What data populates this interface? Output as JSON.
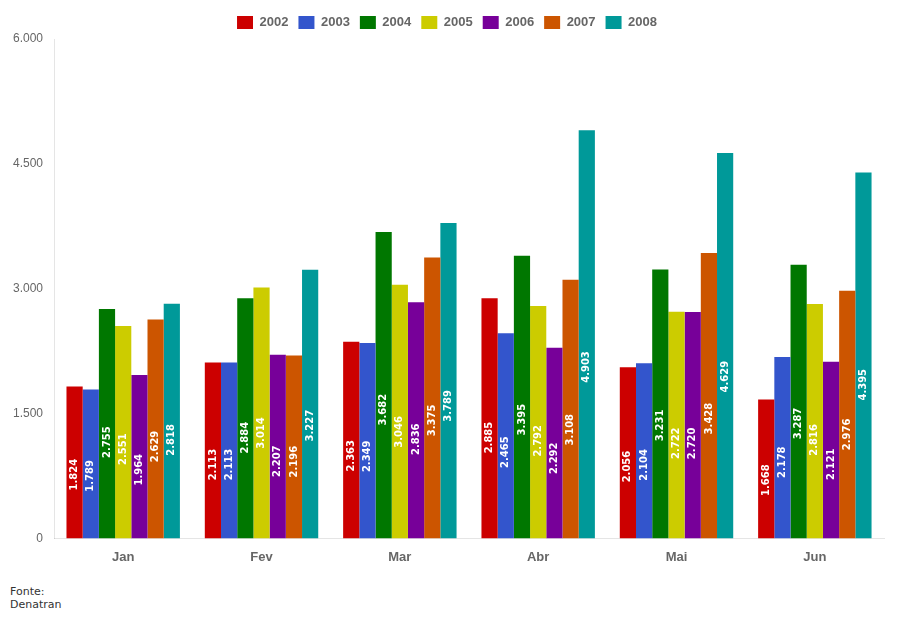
{
  "chart_data": {
    "type": "bar",
    "categories": [
      "Jan",
      "Fev",
      "Mar",
      "Abr",
      "Mai",
      "Jun"
    ],
    "series": [
      {
        "name": "2002",
        "color": "#CC0000",
        "values": [
          1824,
          2113,
          2363,
          2885,
          2056,
          1668
        ],
        "value_labels": [
          "1.824",
          "2.113",
          "2.363",
          "2.885",
          "2.056",
          "1.668"
        ]
      },
      {
        "name": "2003",
        "color": "#3355CC",
        "values": [
          1789,
          2113,
          2349,
          2465,
          2104,
          2178
        ],
        "value_labels": [
          "1.789",
          "2.113",
          "2.349",
          "2.465",
          "2.104",
          "2.178"
        ]
      },
      {
        "name": "2004",
        "color": "#007700",
        "values": [
          2755,
          2884,
          3682,
          3395,
          3231,
          3287
        ],
        "value_labels": [
          "2.755",
          "2.884",
          "3.682",
          "3.395",
          "3.231",
          "3.287"
        ]
      },
      {
        "name": "2005",
        "color": "#CCCC00",
        "values": [
          2551,
          3014,
          3046,
          2792,
          2722,
          2816
        ],
        "value_labels": [
          "2.551",
          "3.014",
          "3.046",
          "2.792",
          "2.722",
          "2.816"
        ]
      },
      {
        "name": "2006",
        "color": "#770099",
        "values": [
          1964,
          2207,
          2836,
          2292,
          2720,
          2121
        ],
        "value_labels": [
          "1.964",
          "2.207",
          "2.836",
          "2.292",
          "2.720",
          "2.121"
        ]
      },
      {
        "name": "2007",
        "color": "#CC5500",
        "values": [
          2629,
          2196,
          3375,
          3108,
          3428,
          2976
        ],
        "value_labels": [
          "2.629",
          "2.196",
          "3.375",
          "3.108",
          "3.428",
          "2.976"
        ]
      },
      {
        "name": "2008",
        "color": "#009999",
        "values": [
          2818,
          3227,
          3789,
          4903,
          4629,
          4395
        ],
        "value_labels": [
          "2.818",
          "3.227",
          "3.789",
          "4.903",
          "4.629",
          "4.395"
        ]
      }
    ],
    "ylim": [
      0,
      6000
    ],
    "yticks": [
      0,
      {
        "value": 1500,
        "label": "1.500"
      },
      {
        "value": 3000,
        "label": "3.000"
      },
      {
        "value": 4500,
        "label": "4.500"
      },
      {
        "value": 6000,
        "label": "6.000"
      }
    ],
    "grid": false,
    "legend": "top",
    "data_labels": true,
    "annotations": [
      "Fonte:\nDenatran"
    ]
  }
}
